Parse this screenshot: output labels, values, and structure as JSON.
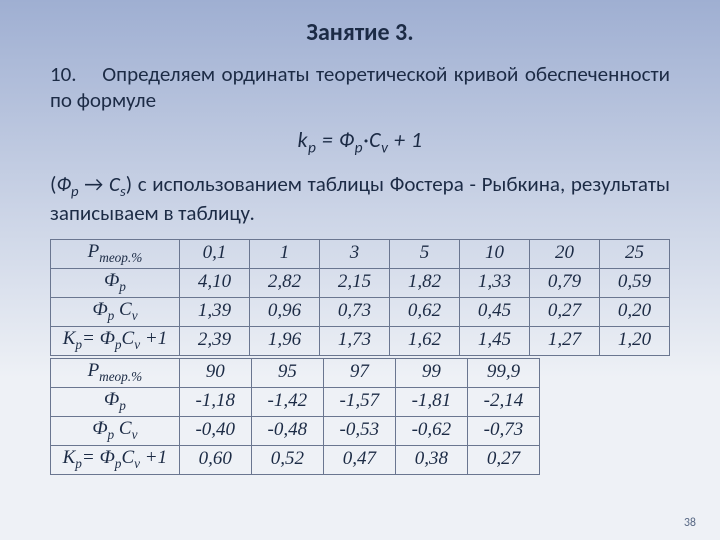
{
  "colors": {
    "bg_top": "#9fafd2",
    "bg_bottom": "#eef1f6",
    "text": "#1c2b45",
    "table_border": "#6a7690",
    "pagenum": "#5a6a86"
  },
  "title": "Занятие 3.",
  "para1_lead": "10.",
  "para1_rest": "Определяем ординаты теоретической кривой обеспеченности по формуле",
  "formula": {
    "k": "k",
    "p1": "р",
    "eq": " = ",
    "phi": "Ф",
    "dot": "·",
    "C": "С",
    "v": "v",
    "plus1": " + 1"
  },
  "para2_pre": "(",
  "para2_phi": "Ф",
  "para2_p": "р",
  "para2_arrow": " → ",
  "para2_C": "С",
  "para2_s": "s",
  "para2_rest": ") с использованием таблицы Фостера - Рыбкина, результаты записываем в таблицу.",
  "table1": {
    "row_headers": [
      "Р_теор.%",
      "Ф_р",
      "Ф_р С_v",
      "К_р = Ф_р С_v +1"
    ],
    "cols": [
      "0,1",
      "1",
      "3",
      "5",
      "10",
      "20",
      "25"
    ],
    "rows": [
      [
        "4,10",
        "2,82",
        "2,15",
        "1,82",
        "1,33",
        "0,79",
        "0,59"
      ],
      [
        "1,39",
        "0,96",
        "0,73",
        "0,62",
        "0,45",
        "0,27",
        "0,20"
      ],
      [
        "2,39",
        "1,96",
        "1,73",
        "1,62",
        "1,45",
        "1,27",
        "1,20"
      ]
    ]
  },
  "table2": {
    "row_headers": [
      "Р_теор.%",
      "Ф_р",
      "Ф_р С_v",
      "К_р = Ф_р С_v +1"
    ],
    "cols": [
      "90",
      "95",
      "97",
      "99",
      "99,9"
    ],
    "rows": [
      [
        "-1,18",
        "-1,42",
        "-1,57",
        "-1,81",
        "-2,14"
      ],
      [
        "-0,40",
        "-0,48",
        "-0,53",
        "-0,62",
        "-0,73"
      ],
      [
        "0,60",
        "0,52",
        "0,47",
        "0,38",
        "0,27"
      ]
    ]
  },
  "page_number": "38"
}
